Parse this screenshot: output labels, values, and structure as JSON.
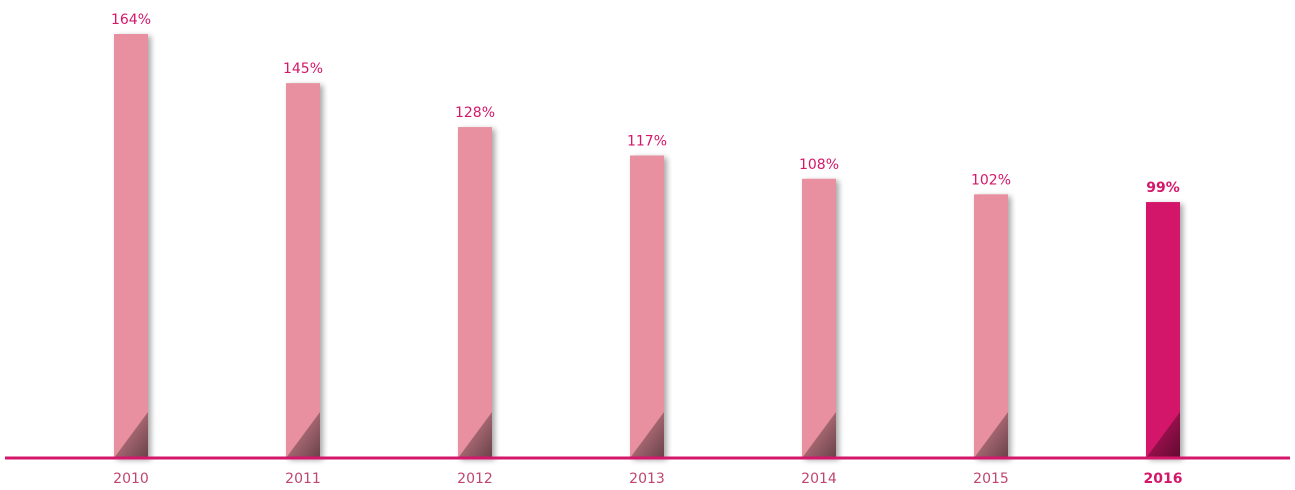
{
  "chart_data": {
    "type": "bar",
    "categories": [
      "2010",
      "2011",
      "2012",
      "2013",
      "2014",
      "2015",
      "2016"
    ],
    "values": [
      164,
      145,
      128,
      117,
      108,
      102,
      99
    ],
    "value_labels": [
      "164%",
      "145%",
      "128%",
      "117%",
      "108%",
      "102%",
      "99%"
    ],
    "color": "#e8909f",
    "highlight_color": "#d4176a",
    "highlight_category": "2016",
    "axis_color": "#d4176a"
  }
}
